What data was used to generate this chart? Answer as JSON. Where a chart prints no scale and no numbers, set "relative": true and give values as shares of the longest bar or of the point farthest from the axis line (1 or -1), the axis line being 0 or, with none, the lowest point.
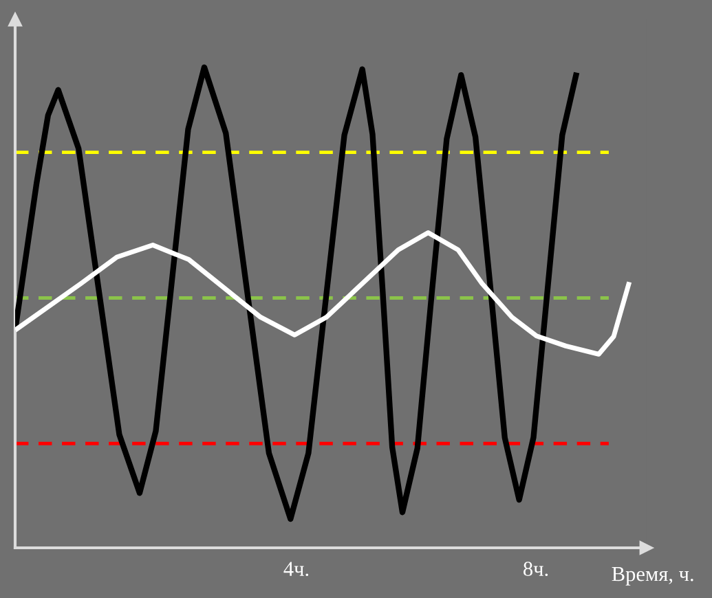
{
  "chart_data": {
    "type": "line",
    "relative": true,
    "xlabel": "Время, ч.",
    "xlim": [
      -0.7,
      9.85
    ],
    "xticks": [
      {
        "value": 4,
        "label": "4ч."
      },
      {
        "value": 8,
        "label": "8ч."
      }
    ],
    "series": [
      {
        "color": "#000000",
        "x": [
          -0.7,
          -0.34,
          -0.15,
          0.02,
          0.36,
          0.7,
          1.04,
          1.38,
          1.65,
          1.92,
          2.19,
          2.46,
          2.82,
          3.18,
          3.54,
          3.9,
          4.2,
          4.5,
          4.8,
          5.1,
          5.27,
          5.44,
          5.6,
          5.77,
          6.02,
          6.26,
          6.51,
          6.75,
          6.99,
          7.24,
          7.48,
          7.72,
          7.96,
          8.2,
          8.44,
          8.68
        ],
        "values": [
          0.453,
          0.76,
          0.9,
          0.953,
          0.831,
          0.534,
          0.236,
          0.114,
          0.243,
          0.557,
          0.871,
          1.0,
          0.863,
          0.53,
          0.197,
          0.06,
          0.197,
          0.528,
          0.859,
          0.996,
          0.861,
          0.535,
          0.209,
          0.074,
          0.207,
          0.529,
          0.851,
          0.984,
          0.855,
          0.542,
          0.229,
          0.1,
          0.23,
          0.545,
          0.859,
          0.989
        ]
      },
      {
        "color": "#ffffff",
        "x": [
          -0.7,
          0.4,
          1.0,
          1.6,
          2.2,
          2.8,
          3.4,
          3.97,
          4.5,
          5.1,
          5.7,
          6.2,
          6.7,
          7.1,
          7.6,
          8.01,
          8.5,
          9.05,
          9.3,
          9.56
        ],
        "values": [
          0.453,
          0.55,
          0.605,
          0.63,
          0.6,
          0.54,
          0.48,
          0.443,
          0.48,
          0.55,
          0.62,
          0.656,
          0.62,
          0.55,
          0.48,
          0.441,
          0.42,
          0.403,
          0.44,
          0.553
        ]
      }
    ],
    "ref_lines": [
      {
        "axis": "y",
        "value": 0.823,
        "color": "#ffff00",
        "line_style": "dashed"
      },
      {
        "axis": "y",
        "value": 0.52,
        "color": "#8bc34a",
        "line_style": "dashed"
      },
      {
        "axis": "y",
        "value": 0.217,
        "color": "#ff0000",
        "line_style": "dashed"
      }
    ],
    "grid": false,
    "line_style": "solid",
    "marker": "none"
  }
}
